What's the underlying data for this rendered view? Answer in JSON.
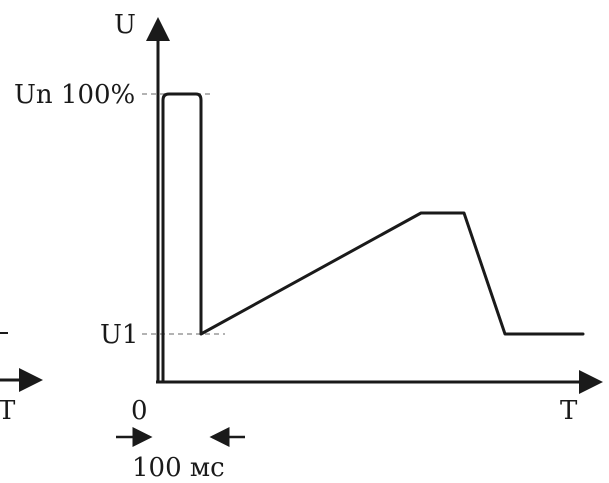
{
  "labels": {
    "y_axis": "U",
    "level_top": "Un 100%",
    "level_low": "U1",
    "origin": "0",
    "x_axis": "T",
    "x_axis_left_fragment": "T",
    "duration": "100 мс"
  },
  "colors": {
    "line": "#1a1a1a",
    "dashed": "#9a9a9a"
  }
}
